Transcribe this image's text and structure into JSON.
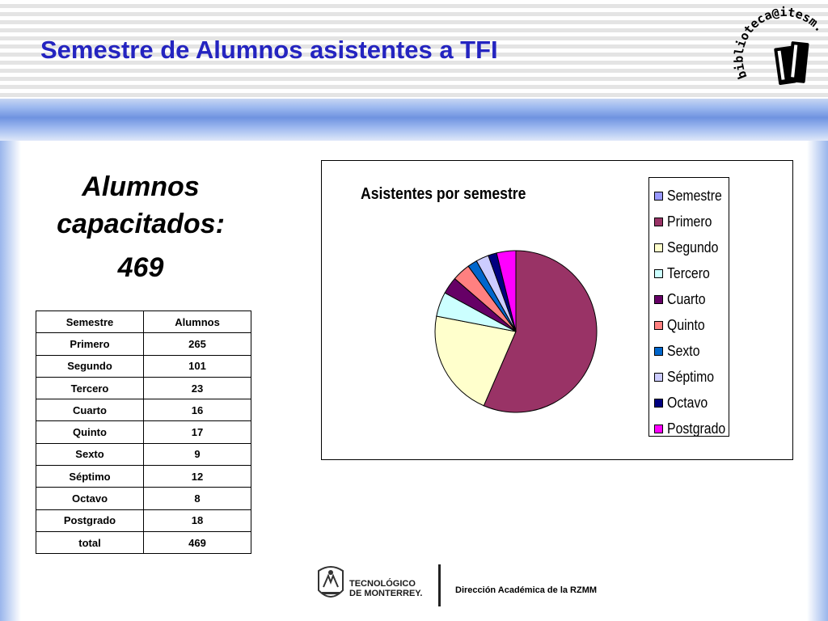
{
  "header": {
    "title": "Semestre de Alumnos asistentes a TFI"
  },
  "logo": {
    "text": "biblioteca@itesm.mx",
    "icon": "books-icon"
  },
  "summary": {
    "label": "Alumnos capacitados:",
    "count": "469"
  },
  "table": {
    "headers": [
      "Semestre",
      "Alumnos"
    ],
    "rows": [
      [
        "Primero",
        "265"
      ],
      [
        "Segundo",
        "101"
      ],
      [
        "Tercero",
        "23"
      ],
      [
        "Cuarto",
        "16"
      ],
      [
        "Quinto",
        "17"
      ],
      [
        "Sexto",
        "9"
      ],
      [
        "Séptimo",
        "12"
      ],
      [
        "Octavo",
        "8"
      ],
      [
        "Postgrado",
        "18"
      ],
      [
        "total",
        "469"
      ]
    ]
  },
  "chart_data": {
    "type": "pie",
    "title": "Asistentes por semestre",
    "categories": [
      "Primero",
      "Segundo",
      "Tercero",
      "Cuarto",
      "Quinto",
      "Sexto",
      "Séptimo",
      "Octavo",
      "Postgrado"
    ],
    "values": [
      265,
      101,
      23,
      16,
      17,
      9,
      12,
      8,
      18
    ],
    "legend": [
      "Semestre",
      "Primero",
      "Segundo",
      "Tercero",
      "Cuarto",
      "Quinto",
      "Sexto",
      "Séptimo",
      "Octavo",
      "Postgrado"
    ],
    "legend_colors": [
      "#9999ff",
      "#993366",
      "#ffffcc",
      "#ccffff",
      "#660066",
      "#ff8080",
      "#0066cc",
      "#ccccff",
      "#000080",
      "#ff00ff"
    ],
    "colors": [
      "#993366",
      "#ffffcc",
      "#ccffff",
      "#660066",
      "#ff8080",
      "#0066cc",
      "#ccccff",
      "#000080",
      "#ff00ff"
    ],
    "legend_position": "right"
  },
  "footer": {
    "institution_line1": "TECNOLÓGICO",
    "institution_line2": "DE MONTERREY.",
    "text": "Dirección Académica de la RZMM"
  }
}
